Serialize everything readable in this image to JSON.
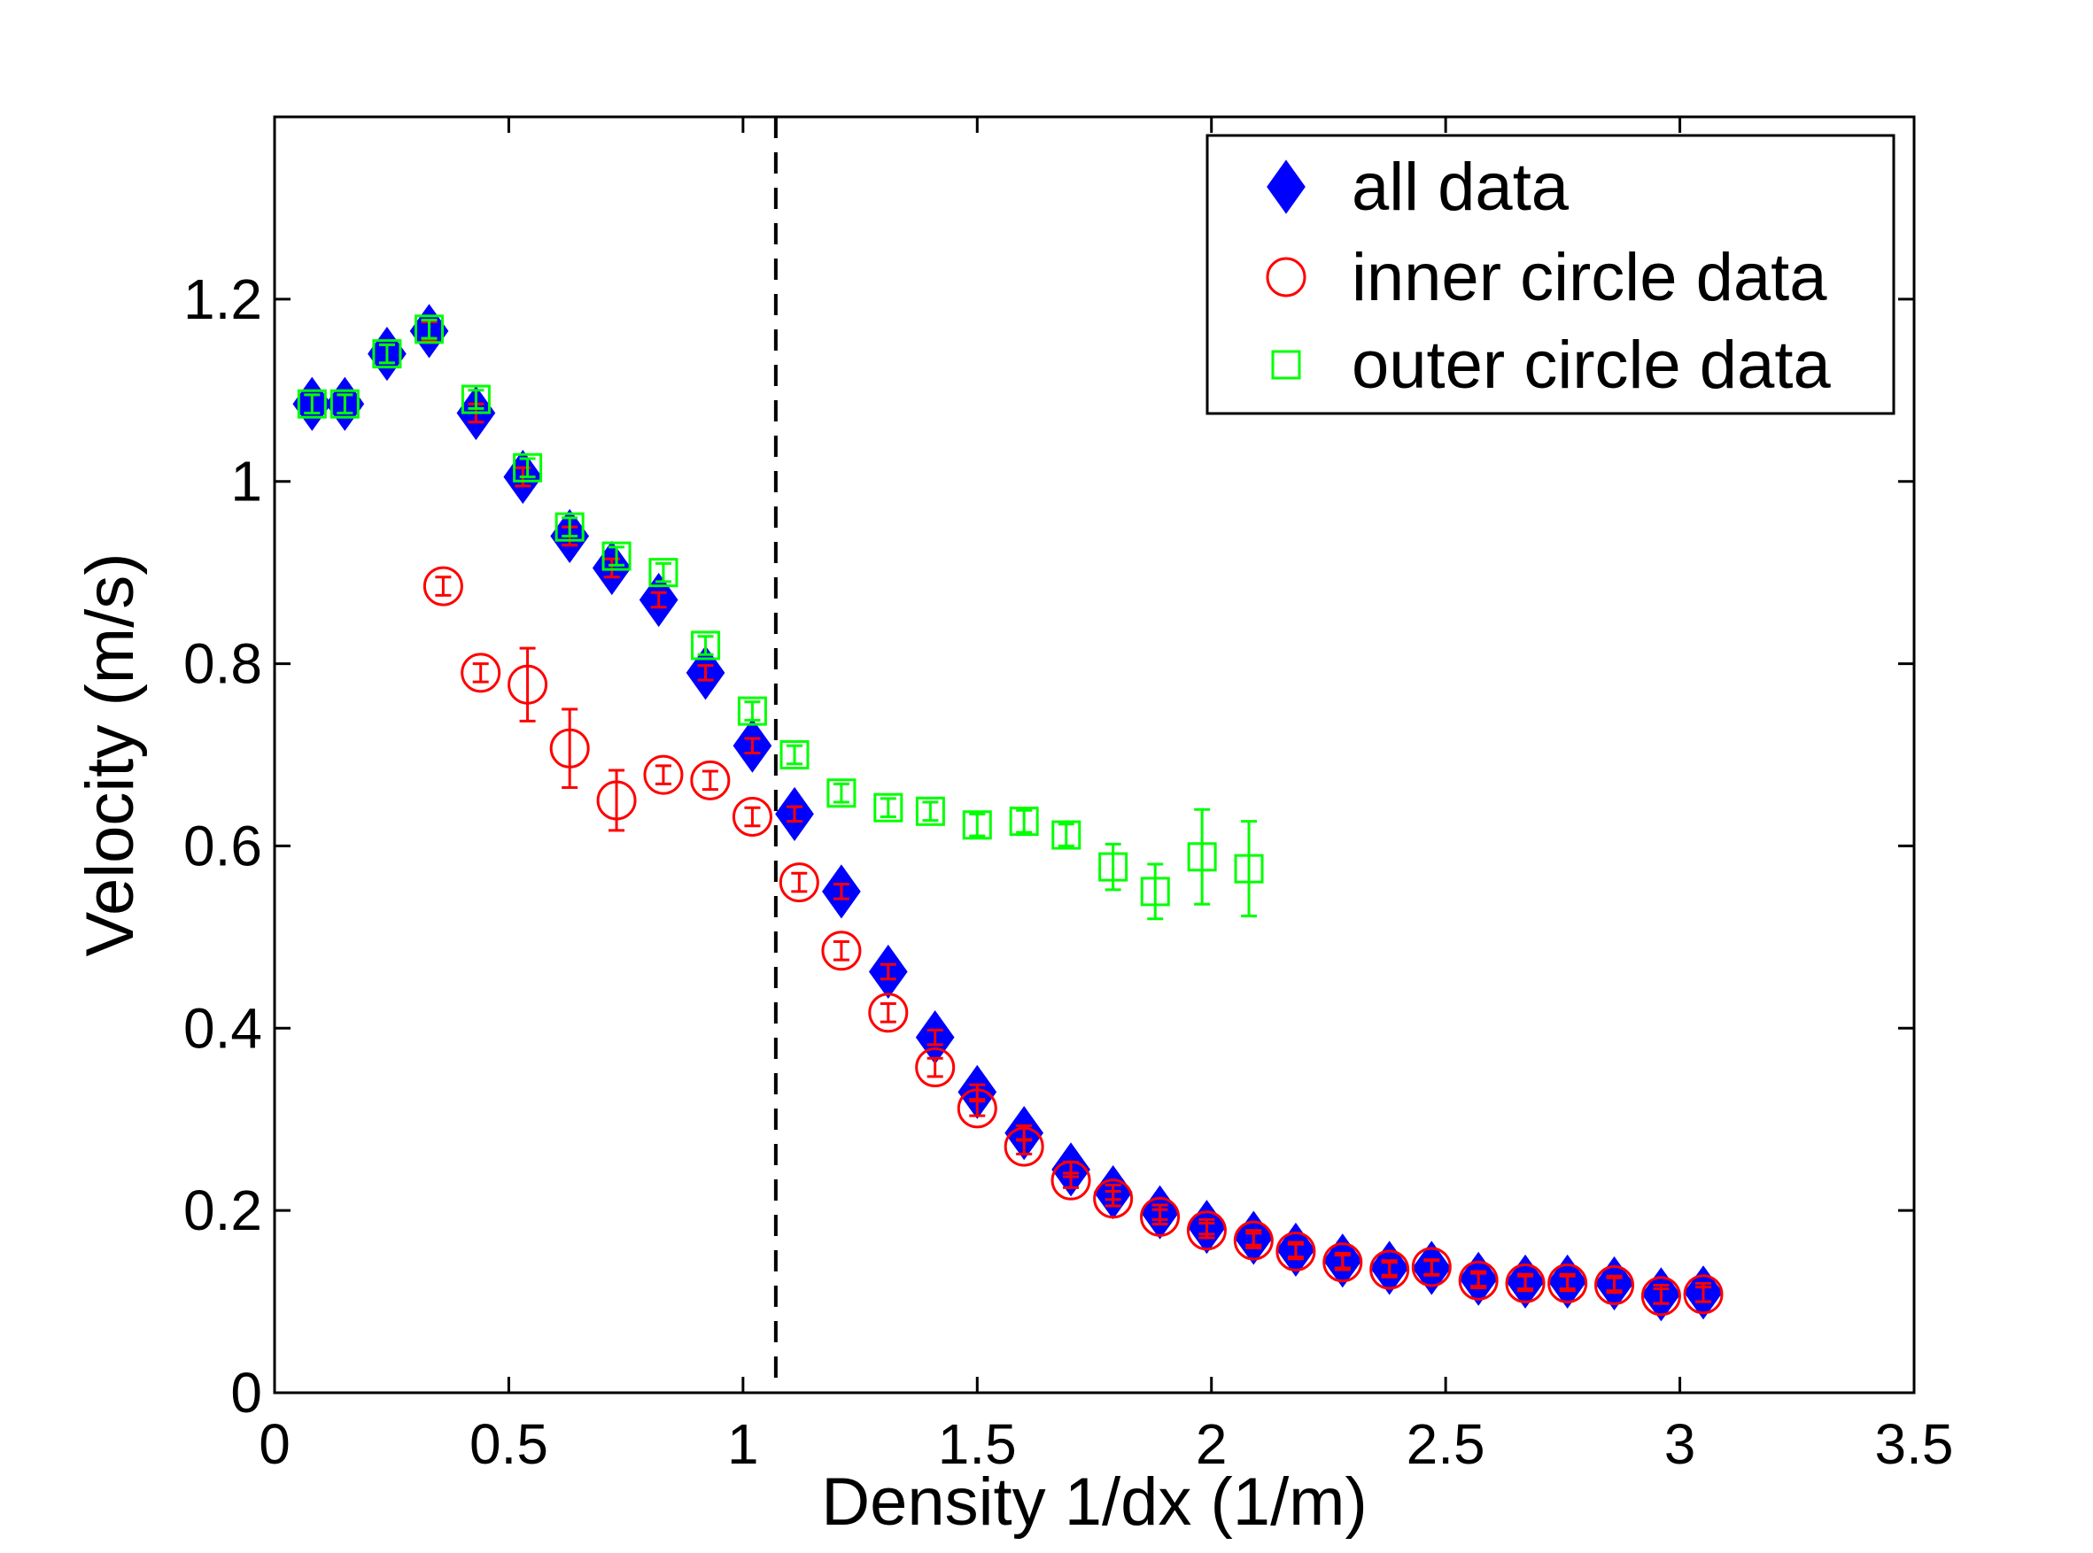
{
  "chart_data": {
    "type": "scatter",
    "title": "",
    "xlabel": "Density 1/dx (1/m)",
    "ylabel": "Velocity (m/s)",
    "xlim": [
      0,
      3.5
    ],
    "ylim": [
      0,
      1.4
    ],
    "xticks": [
      0,
      0.5,
      1,
      1.5,
      2,
      2.5,
      3,
      3.5
    ],
    "xtick_labels": [
      "0",
      "0.5",
      "1",
      "1.5",
      "2",
      "2.5",
      "3",
      "3.5"
    ],
    "yticks": [
      0,
      0.2,
      0.4,
      0.6,
      0.8,
      1.0,
      1.2
    ],
    "ytick_labels": [
      "0",
      "0.2",
      "0.4",
      "0.6",
      "0.8",
      "1",
      "1.2"
    ],
    "grid": false,
    "legend_position": "top-right",
    "reference_line": {
      "type": "vertical-dashed",
      "x": 1.07
    },
    "series": [
      {
        "name": "all data",
        "marker": "diamond",
        "color": "#0000ff",
        "filled": true,
        "points": [
          {
            "x": 0.08,
            "y": 1.085,
            "err": 0.01
          },
          {
            "x": 0.15,
            "y": 1.085,
            "err": 0.01
          },
          {
            "x": 0.24,
            "y": 1.14,
            "err": 0.01
          },
          {
            "x": 0.33,
            "y": 1.165,
            "err": 0.01
          },
          {
            "x": 0.43,
            "y": 1.075,
            "err": 0.01
          },
          {
            "x": 0.53,
            "y": 1.005,
            "err": 0.01
          },
          {
            "x": 0.63,
            "y": 0.94,
            "err": 0.01
          },
          {
            "x": 0.72,
            "y": 0.905,
            "err": 0.01
          },
          {
            "x": 0.82,
            "y": 0.87,
            "err": 0.008
          },
          {
            "x": 0.92,
            "y": 0.79,
            "err": 0.008
          },
          {
            "x": 1.02,
            "y": 0.71,
            "err": 0.008
          },
          {
            "x": 1.11,
            "y": 0.635,
            "err": 0.008
          },
          {
            "x": 1.21,
            "y": 0.55,
            "err": 0.008
          },
          {
            "x": 1.31,
            "y": 0.462,
            "err": 0.008
          },
          {
            "x": 1.41,
            "y": 0.39,
            "err": 0.008
          },
          {
            "x": 1.5,
            "y": 0.33,
            "err": 0.008
          },
          {
            "x": 1.6,
            "y": 0.285,
            "err": 0.008
          },
          {
            "x": 1.7,
            "y": 0.245,
            "err": 0.008
          },
          {
            "x": 1.79,
            "y": 0.22,
            "err": 0.008
          },
          {
            "x": 1.89,
            "y": 0.198,
            "err": 0.008
          },
          {
            "x": 1.99,
            "y": 0.182,
            "err": 0.008
          },
          {
            "x": 2.09,
            "y": 0.17,
            "err": 0.008
          },
          {
            "x": 2.18,
            "y": 0.157,
            "err": 0.008
          },
          {
            "x": 2.28,
            "y": 0.145,
            "err": 0.008
          },
          {
            "x": 2.38,
            "y": 0.137,
            "err": 0.008
          },
          {
            "x": 2.47,
            "y": 0.137,
            "err": 0.008
          },
          {
            "x": 2.57,
            "y": 0.125,
            "err": 0.008
          },
          {
            "x": 2.67,
            "y": 0.122,
            "err": 0.008
          },
          {
            "x": 2.76,
            "y": 0.122,
            "err": 0.008
          },
          {
            "x": 2.86,
            "y": 0.12,
            "err": 0.008
          },
          {
            "x": 2.96,
            "y": 0.108,
            "err": 0.01
          },
          {
            "x": 3.05,
            "y": 0.11,
            "err": 0.01
          }
        ]
      },
      {
        "name": "inner circle data",
        "marker": "circle",
        "color": "#ff0000",
        "filled": false,
        "points": [
          {
            "x": 0.36,
            "y": 0.885,
            "err": 0.01
          },
          {
            "x": 0.44,
            "y": 0.79,
            "err": 0.01
          },
          {
            "x": 0.54,
            "y": 0.777,
            "err": 0.04
          },
          {
            "x": 0.63,
            "y": 0.707,
            "err": 0.043
          },
          {
            "x": 0.73,
            "y": 0.65,
            "err": 0.033
          },
          {
            "x": 0.83,
            "y": 0.678,
            "err": 0.01
          },
          {
            "x": 0.93,
            "y": 0.672,
            "err": 0.01
          },
          {
            "x": 1.02,
            "y": 0.632,
            "err": 0.01
          },
          {
            "x": 1.12,
            "y": 0.56,
            "err": 0.01
          },
          {
            "x": 1.21,
            "y": 0.485,
            "err": 0.01
          },
          {
            "x": 1.31,
            "y": 0.417,
            "err": 0.01
          },
          {
            "x": 1.41,
            "y": 0.357,
            "err": 0.01
          },
          {
            "x": 1.5,
            "y": 0.312,
            "err": 0.008
          },
          {
            "x": 1.6,
            "y": 0.27,
            "err": 0.008
          },
          {
            "x": 1.7,
            "y": 0.233,
            "err": 0.008
          },
          {
            "x": 1.79,
            "y": 0.213,
            "err": 0.008
          },
          {
            "x": 1.89,
            "y": 0.193,
            "err": 0.008
          },
          {
            "x": 1.99,
            "y": 0.178,
            "err": 0.008
          },
          {
            "x": 2.09,
            "y": 0.167,
            "err": 0.008
          },
          {
            "x": 2.18,
            "y": 0.155,
            "err": 0.008
          },
          {
            "x": 2.28,
            "y": 0.143,
            "err": 0.008
          },
          {
            "x": 2.38,
            "y": 0.135,
            "err": 0.008
          },
          {
            "x": 2.47,
            "y": 0.138,
            "err": 0.008
          },
          {
            "x": 2.57,
            "y": 0.123,
            "err": 0.008
          },
          {
            "x": 2.67,
            "y": 0.12,
            "err": 0.008
          },
          {
            "x": 2.76,
            "y": 0.12,
            "err": 0.008
          },
          {
            "x": 2.86,
            "y": 0.118,
            "err": 0.008
          },
          {
            "x": 2.96,
            "y": 0.106,
            "err": 0.008
          },
          {
            "x": 3.05,
            "y": 0.108,
            "err": 0.008
          }
        ]
      },
      {
        "name": "outer circle data",
        "marker": "square",
        "color": "#00ff00",
        "filled": false,
        "points": [
          {
            "x": 0.08,
            "y": 1.085,
            "err": 0.01
          },
          {
            "x": 0.15,
            "y": 1.085,
            "err": 0.01
          },
          {
            "x": 0.24,
            "y": 1.14,
            "err": 0.01
          },
          {
            "x": 0.33,
            "y": 1.167,
            "err": 0.01
          },
          {
            "x": 0.43,
            "y": 1.09,
            "err": 0.01
          },
          {
            "x": 0.54,
            "y": 1.015,
            "err": 0.01
          },
          {
            "x": 0.63,
            "y": 0.95,
            "err": 0.01
          },
          {
            "x": 0.73,
            "y": 0.918,
            "err": 0.01
          },
          {
            "x": 0.83,
            "y": 0.9,
            "err": 0.01
          },
          {
            "x": 0.92,
            "y": 0.82,
            "err": 0.01
          },
          {
            "x": 1.02,
            "y": 0.748,
            "err": 0.01
          },
          {
            "x": 1.11,
            "y": 0.7,
            "err": 0.01
          },
          {
            "x": 1.21,
            "y": 0.658,
            "err": 0.01
          },
          {
            "x": 1.31,
            "y": 0.642,
            "err": 0.01
          },
          {
            "x": 1.4,
            "y": 0.638,
            "err": 0.01
          },
          {
            "x": 1.5,
            "y": 0.623,
            "err": 0.012
          },
          {
            "x": 1.6,
            "y": 0.627,
            "err": 0.012
          },
          {
            "x": 1.69,
            "y": 0.612,
            "err": 0.012
          },
          {
            "x": 1.79,
            "y": 0.577,
            "err": 0.025
          },
          {
            "x": 1.88,
            "y": 0.55,
            "err": 0.03
          },
          {
            "x": 1.98,
            "y": 0.588,
            "err": 0.052
          },
          {
            "x": 2.08,
            "y": 0.575,
            "err": 0.052
          }
        ]
      }
    ]
  }
}
